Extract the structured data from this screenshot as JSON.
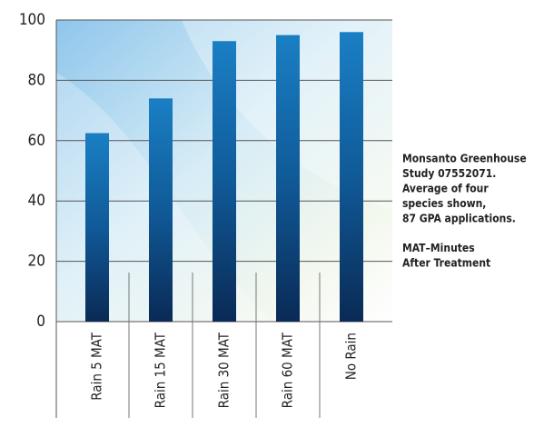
{
  "chart_data": {
    "type": "bar",
    "categories": [
      "Rain 5 MAT",
      "Rain 15 MAT",
      "Rain 30 MAT",
      "Rain 60 MAT",
      "No Rain"
    ],
    "values": [
      62.5,
      74,
      93,
      95,
      96
    ],
    "ylim": [
      0,
      100
    ],
    "yticks": [
      0,
      20,
      40,
      60,
      80,
      100
    ],
    "grid": true,
    "annotations": [
      [
        "Monsanto Greenhouse",
        "Study 07552071.",
        "Average of four",
        "species shown,",
        "87 GPA applications."
      ],
      [
        "MAT–Minutes",
        "After Treatment"
      ]
    ]
  }
}
